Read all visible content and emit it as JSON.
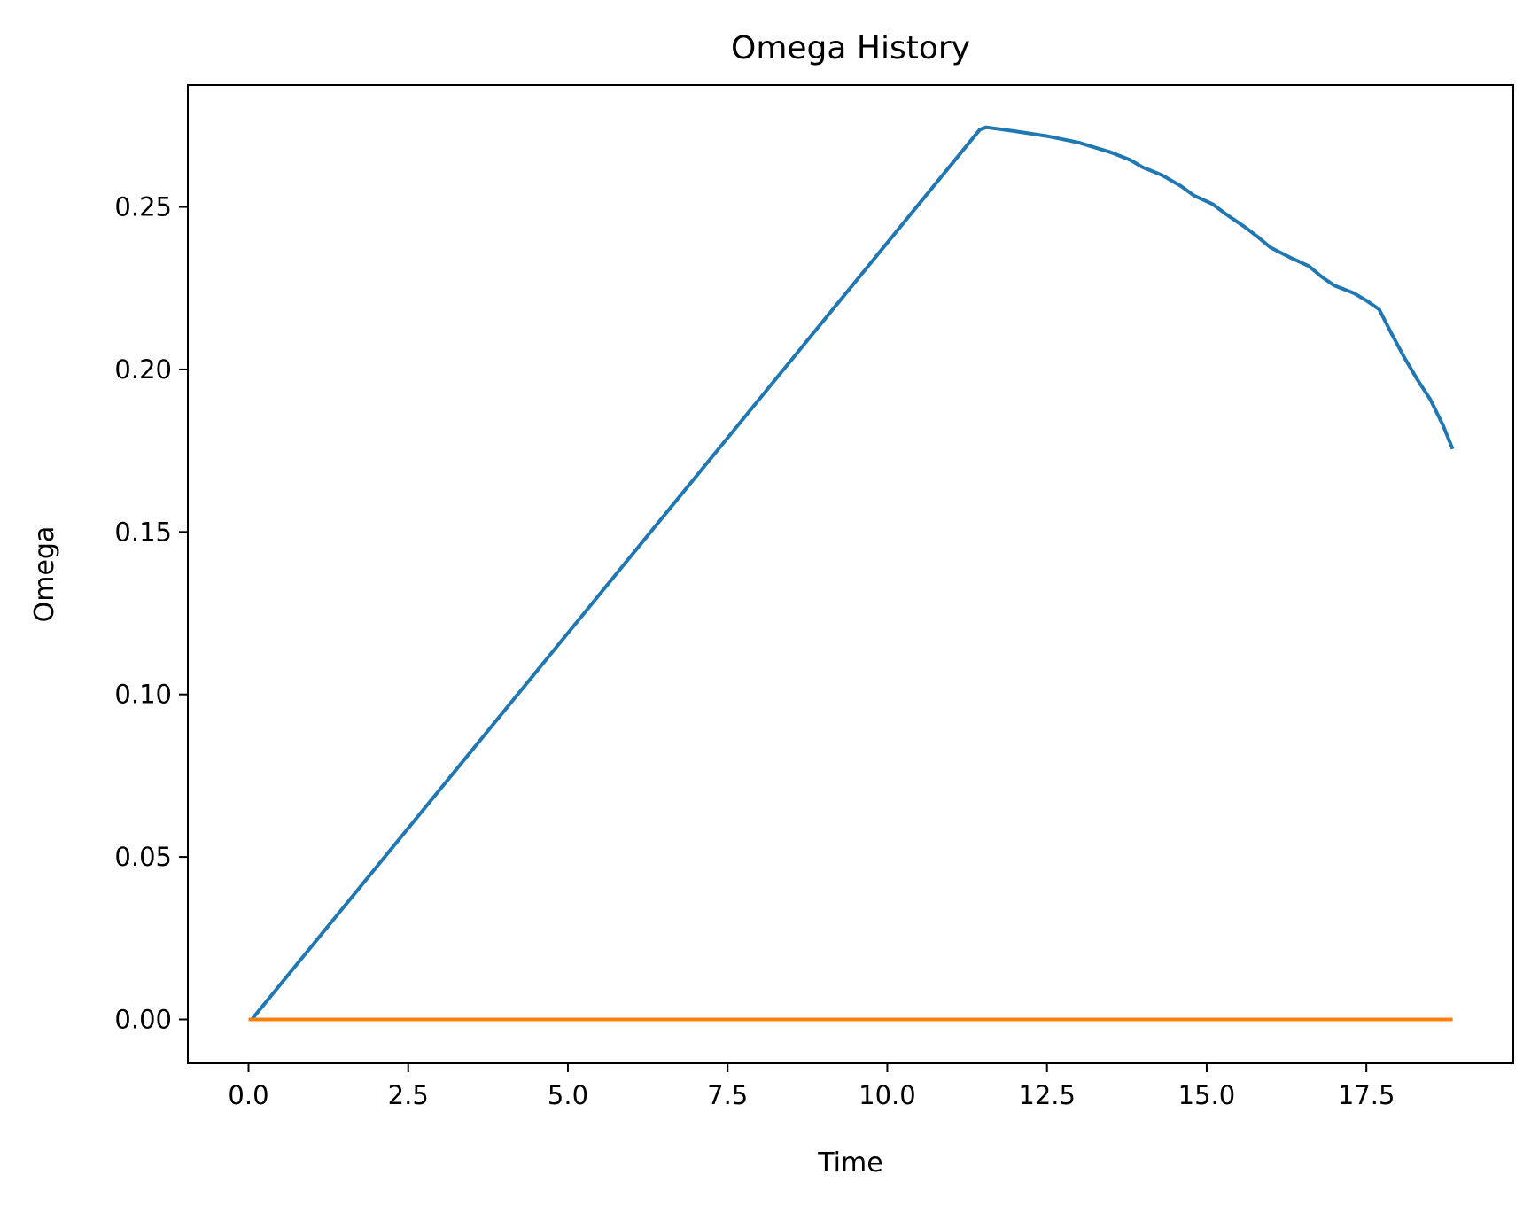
{
  "chart_data": {
    "type": "line",
    "title": "Omega History",
    "xlabel": "Time",
    "ylabel": "Omega",
    "xlim": [
      -0.95,
      19.8
    ],
    "ylim": [
      -0.0135,
      0.2875
    ],
    "xticks": [
      0.0,
      2.5,
      5.0,
      7.5,
      10.0,
      12.5,
      15.0,
      17.5
    ],
    "xtick_labels": [
      "0.0",
      "2.5",
      "5.0",
      "7.5",
      "10.0",
      "12.5",
      "15.0",
      "17.5"
    ],
    "yticks": [
      0.0,
      0.05,
      0.1,
      0.15,
      0.2,
      0.25
    ],
    "ytick_labels": [
      "0.00",
      "0.05",
      "0.10",
      "0.15",
      "0.20",
      "0.25"
    ],
    "grid": false,
    "legend": false,
    "series": [
      {
        "color": "#1f77b4",
        "x": [
          0.05,
          11.45,
          11.55,
          12.0,
          12.5,
          13.0,
          13.5,
          13.8,
          14.0,
          14.3,
          14.6,
          14.8,
          15.1,
          15.3,
          15.6,
          15.8,
          16.0,
          16.3,
          16.6,
          16.8,
          17.0,
          17.3,
          17.5,
          17.7,
          17.9,
          18.1,
          18.3,
          18.5,
          18.7,
          18.85
        ],
        "y": [
          0.0,
          0.2738,
          0.2745,
          0.2733,
          0.2718,
          0.2698,
          0.2668,
          0.2645,
          0.2622,
          0.2598,
          0.2564,
          0.2535,
          0.2508,
          0.2478,
          0.2438,
          0.2408,
          0.2375,
          0.2345,
          0.2318,
          0.2285,
          0.2258,
          0.2235,
          0.2212,
          0.2185,
          0.2108,
          0.2035,
          0.1968,
          0.1908,
          0.1828,
          0.1755
        ]
      },
      {
        "color": "#ff7f0e",
        "x": [
          0.0,
          18.85
        ],
        "y": [
          0.0,
          0.0
        ]
      }
    ]
  }
}
